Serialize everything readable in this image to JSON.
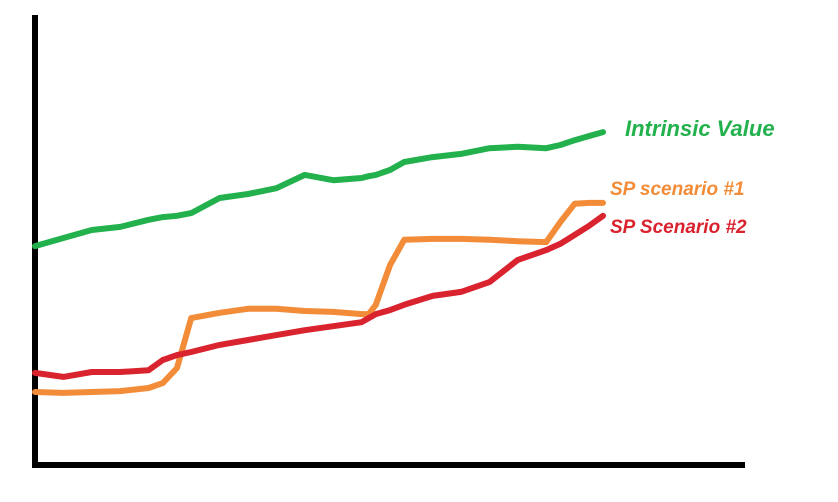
{
  "chart_data": {
    "type": "line",
    "x": [
      0,
      4,
      8,
      12,
      16,
      18,
      20,
      22,
      26,
      30,
      34,
      38,
      42,
      46,
      47,
      48,
      50,
      52,
      56,
      60,
      64,
      68,
      72,
      74,
      76,
      78,
      80
    ],
    "xlim": [
      0,
      100
    ],
    "ylim": [
      0,
      100
    ],
    "series": [
      {
        "name": "Intrinsic Value",
        "color": "#22b14c",
        "values": [
          49.2,
          51.0,
          52.8,
          53.5,
          55.1,
          55.7,
          56.0,
          56.6,
          60.0,
          60.9,
          62.2,
          65.2,
          64.0,
          64.5,
          64.9,
          65.2,
          66.3,
          68.1,
          69.2,
          69.9,
          71.2,
          71.5,
          71.2,
          71.9,
          73.0,
          73.9,
          74.8
        ]
      },
      {
        "name": "SP scenario #1",
        "color": "#f28c38",
        "values": [
          16.4,
          16.2,
          16.4,
          16.6,
          17.3,
          18.4,
          21.8,
          33.0,
          34.2,
          35.1,
          35.1,
          34.6,
          34.4,
          33.9,
          33.9,
          36.0,
          44.9,
          50.6,
          50.8,
          50.8,
          50.6,
          50.3,
          50.1,
          54.6,
          58.7,
          58.9,
          58.9
        ]
      },
      {
        "name": "SP Scenario #2",
        "color": "#d9232e",
        "values": [
          20.7,
          19.8,
          20.9,
          20.9,
          21.3,
          23.6,
          24.7,
          25.4,
          27.0,
          28.1,
          29.2,
          30.3,
          31.2,
          32.1,
          33.0,
          33.9,
          34.8,
          36.0,
          38.0,
          38.9,
          41.1,
          46.1,
          48.3,
          49.7,
          51.7,
          53.7,
          56.0
        ]
      }
    ]
  }
}
